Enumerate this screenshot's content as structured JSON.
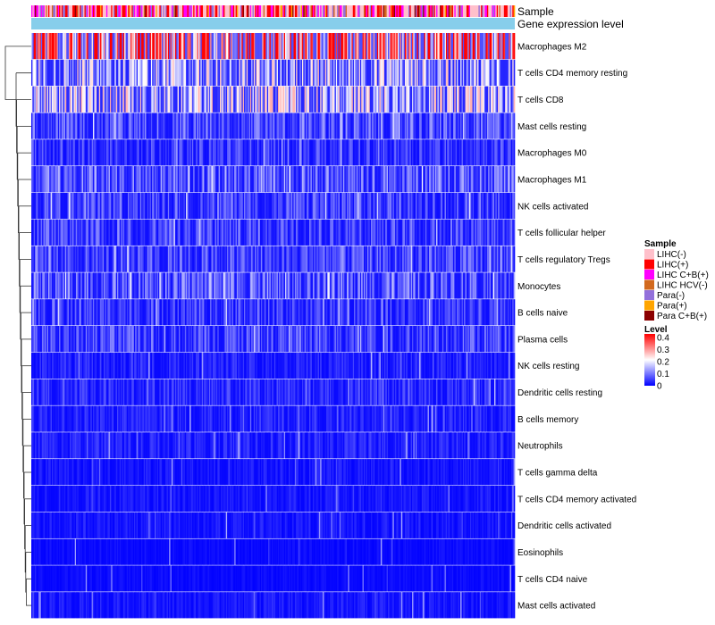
{
  "chart_data": {
    "type": "heatmap",
    "annotation_tracks": [
      {
        "name": "Sample"
      },
      {
        "name": "Gene expression level"
      }
    ],
    "rows": [
      {
        "label": "Macrophages M2",
        "mean": 0.3
      },
      {
        "label": "T cells CD4 memory resting",
        "mean": 0.14
      },
      {
        "label": "T cells CD8",
        "mean": 0.15
      },
      {
        "label": "Mast cells resting",
        "mean": 0.07
      },
      {
        "label": "Macrophages M0",
        "mean": 0.05
      },
      {
        "label": "Macrophages M1",
        "mean": 0.08
      },
      {
        "label": "NK cells activated",
        "mean": 0.06
      },
      {
        "label": "T cells follicular helper",
        "mean": 0.06
      },
      {
        "label": "T cells regulatory  Tregs",
        "mean": 0.06
      },
      {
        "label": "Monocytes",
        "mean": 0.08
      },
      {
        "label": "B cells naive",
        "mean": 0.05
      },
      {
        "label": "Plasma cells",
        "mean": 0.06
      },
      {
        "label": "NK cells resting",
        "mean": 0.03
      },
      {
        "label": "Dendritic cells resting",
        "mean": 0.04
      },
      {
        "label": "B cells memory",
        "mean": 0.03
      },
      {
        "label": "Neutrophils",
        "mean": 0.03
      },
      {
        "label": "T cells gamma delta",
        "mean": 0.02
      },
      {
        "label": "T cells CD4 memory activated",
        "mean": 0.02
      },
      {
        "label": "Dendritic cells activated",
        "mean": 0.02
      },
      {
        "label": "Eosinophils",
        "mean": 0.01
      },
      {
        "label": "T cells CD4 naive",
        "mean": 0.01
      },
      {
        "label": "Mast cells activated",
        "mean": 0.02
      }
    ],
    "sample_legend": {
      "title": "Sample",
      "items": [
        {
          "label": "LIHC(-)",
          "color": "#ffc0cb"
        },
        {
          "label": "LIHC(+)",
          "color": "#ff0000"
        },
        {
          "label": "LIHC C+B(+)",
          "color": "#ff00ff"
        },
        {
          "label": "LIHC HCV(-)",
          "color": "#d2691e"
        },
        {
          "label": "Para(-)",
          "color": "#9370db"
        },
        {
          "label": "Para(+)",
          "color": "#ffa500"
        },
        {
          "label": "Para C+B(+)",
          "color": "#8b0000"
        }
      ]
    },
    "level_legend": {
      "title": "Level",
      "ticks": [
        "0.4",
        "0.3",
        "0.2",
        "0.1",
        "0"
      ],
      "range": [
        0,
        0.4
      ],
      "low_color": "#0000ff",
      "mid_color": "#ffffff",
      "high_color": "#ff0000"
    },
    "gene_expression_color": "#87ceeb",
    "n_samples": 400
  }
}
